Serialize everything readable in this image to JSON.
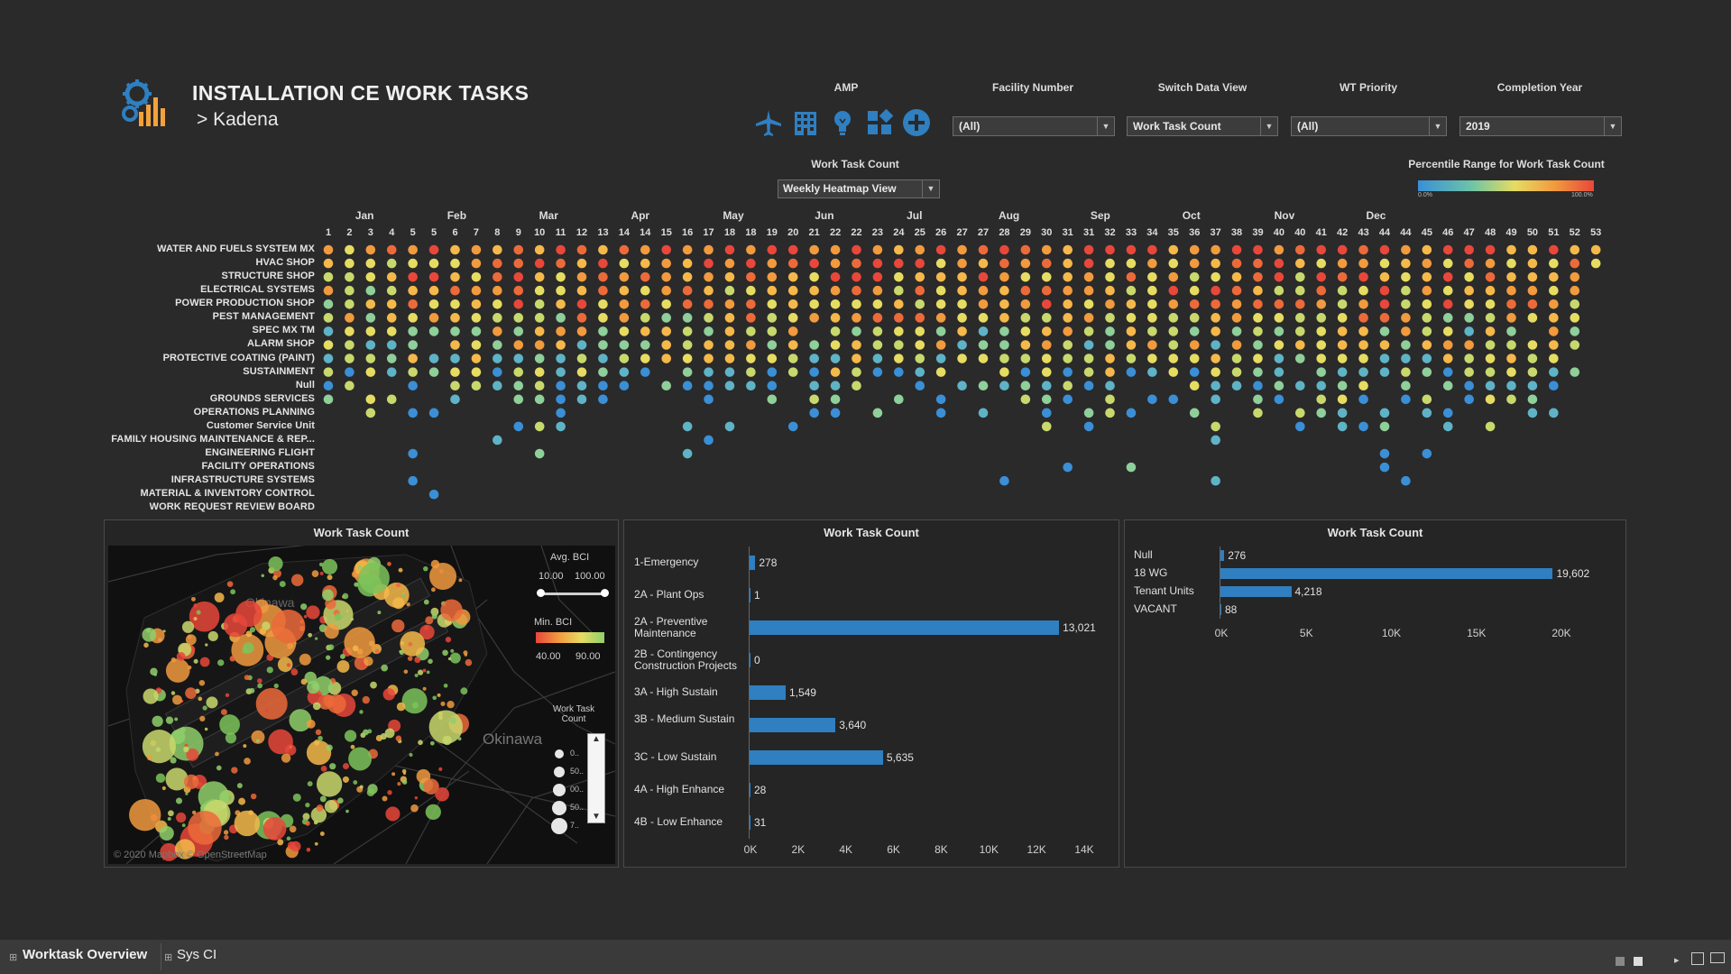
{
  "header": {
    "title": "INSTALLATION CE WORK TASKS",
    "subtitle": "> Kadena"
  },
  "filters": {
    "amp": {
      "label": "AMP",
      "icons": [
        "airplane-icon",
        "building-icon",
        "lightbulb-icon",
        "grid-icon",
        "add-circle-icon"
      ]
    },
    "facility_number": {
      "label": "Facility Number",
      "value": "(All)"
    },
    "switch_view": {
      "label": "Switch Data View",
      "value": "Work Task Count"
    },
    "wt_priority": {
      "label": "WT Priority",
      "value": "(All)"
    },
    "completion_year": {
      "label": "Completion Year",
      "value": "2019"
    }
  },
  "heatmap": {
    "title": "Work Task Count",
    "view_selector": "Weekly Heatmap View",
    "legend": {
      "title": "Percentile Range for Work Task Count",
      "min_label": "0.0%",
      "max_label": "100.0%"
    },
    "months": [
      "Jan",
      "Feb",
      "Mar",
      "Apr",
      "May",
      "Jun",
      "Jul",
      "Aug",
      "Sep",
      "Oct",
      "Nov",
      "Dec"
    ],
    "weeks": [
      "1",
      "2",
      "3",
      "4",
      "5",
      "5",
      "6",
      "7",
      "8",
      "9",
      "10",
      "11",
      "12",
      "13",
      "14",
      "14",
      "15",
      "16",
      "17",
      "18",
      "18",
      "19",
      "20",
      "21",
      "22",
      "22",
      "23",
      "24",
      "25",
      "26",
      "27",
      "27",
      "28",
      "29",
      "30",
      "31",
      "31",
      "32",
      "33",
      "34",
      "35",
      "36",
      "37",
      "38",
      "39",
      "40",
      "40",
      "41",
      "42",
      "43",
      "44",
      "44",
      "45",
      "46",
      "47",
      "48",
      "49",
      "50",
      "51",
      "52",
      "53"
    ],
    "rows": [
      "WATER AND FUELS SYSTEM MX",
      "HVAC SHOP",
      "STRUCTURE SHOP",
      "ELECTRICAL SYSTEMS",
      "POWER PRODUCTION SHOP",
      "PEST MANAGEMENT",
      "SPEC MX TM",
      "ALARM SHOP",
      "PROTECTIVE COATING (PAINT)",
      "SUSTAINMENT",
      "Null",
      "GROUNDS SERVICES",
      "OPERATIONS PLANNING",
      "Customer Service Unit",
      "FAMILY HOUSING MAINTENANCE & REP...",
      "ENGINEERING FLIGHT",
      "FACILITY OPERATIONS",
      "INFRASTRUCTURE SYSTEMS",
      "MATERIAL & INVENTORY CONTROL",
      "WORK REQUEST REVIEW BOARD"
    ],
    "colors": {
      "low": "#3a8fd6",
      "mid": "#e6dc62",
      "high": "#e8473a"
    }
  },
  "map": {
    "title": "Work Task Count",
    "place_labels": [
      "Okinawa",
      "Okinawa"
    ],
    "avg_bci": {
      "label": "Avg. BCI",
      "min": "10.00",
      "max": "100.00"
    },
    "min_bci": {
      "label": "Min. BCI",
      "min": "40.00",
      "max": "90.00"
    },
    "size_legend": {
      "label": "Work Task Count",
      "entries": [
        "0..",
        "50..",
        "00..",
        "50..",
        "7.."
      ]
    },
    "attribution": "© 2020 Mapbox © OpenStreetMap"
  },
  "bar_priority": {
    "title": "Work Task Count",
    "chart_data": {
      "type": "bar",
      "categories": [
        "1-Emergency",
        "2A - Plant Ops",
        "2A - Preventive Maintenance",
        "2B - Contingency Construction Projects",
        "3A - High Sustain",
        "3B - Medium Sustain",
        "3C - Low Sustain",
        "4A - High Enhance",
        "4B - Low Enhance"
      ],
      "values": [
        278,
        1,
        13021,
        0,
        1549,
        3640,
        5635,
        28,
        31
      ],
      "value_labels": [
        "278",
        "1",
        "13,021",
        "0",
        "1,549",
        "3,640",
        "5,635",
        "28",
        "31"
      ],
      "xlim": [
        0,
        14000
      ],
      "ticks": [
        "0K",
        "2K",
        "4K",
        "6K",
        "8K",
        "10K",
        "12K",
        "14K"
      ],
      "color": "#2f7fc1"
    }
  },
  "bar_unit": {
    "title": "Work Task Count",
    "chart_data": {
      "type": "bar",
      "categories": [
        "Null",
        "18 WG",
        "Tenant Units",
        "VACANT"
      ],
      "values": [
        276,
        19602,
        4218,
        88
      ],
      "value_labels": [
        "276",
        "19,602",
        "4,218",
        "88"
      ],
      "xlim": [
        0,
        20000
      ],
      "ticks": [
        "0K",
        "5K",
        "10K",
        "15K",
        "20K"
      ],
      "color": "#2f7fc1"
    }
  },
  "tabs": [
    "Worktask Overview",
    "Sys CI"
  ]
}
